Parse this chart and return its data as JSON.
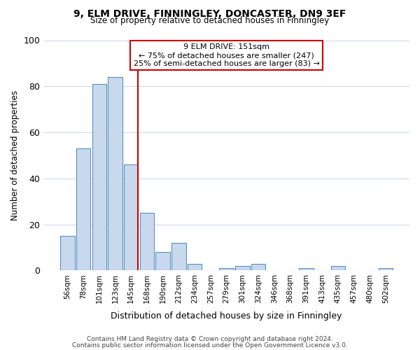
{
  "title": "9, ELM DRIVE, FINNINGLEY, DONCASTER, DN9 3EF",
  "subtitle": "Size of property relative to detached houses in Finningley",
  "xlabel": "Distribution of detached houses by size in Finningley",
  "ylabel": "Number of detached properties",
  "bar_labels": [
    "56sqm",
    "78sqm",
    "101sqm",
    "123sqm",
    "145sqm",
    "168sqm",
    "190sqm",
    "212sqm",
    "234sqm",
    "257sqm",
    "279sqm",
    "301sqm",
    "324sqm",
    "346sqm",
    "368sqm",
    "391sqm",
    "413sqm",
    "435sqm",
    "457sqm",
    "480sqm",
    "502sqm"
  ],
  "bar_values": [
    15,
    53,
    81,
    84,
    46,
    25,
    8,
    12,
    3,
    0,
    1,
    2,
    3,
    0,
    0,
    1,
    0,
    2,
    0,
    0,
    1
  ],
  "bar_color": "#c9d9ed",
  "bar_edge_color": "#5a8fc0",
  "background_color": "#ffffff",
  "grid_color": "#d0d8e8",
  "annotation_line1": "9 ELM DRIVE: 151sqm",
  "annotation_line2": "← 75% of detached houses are smaller (247)",
  "annotation_line3": "25% of semi-detached houses are larger (83) →",
  "annotation_box_edge_color": "#cc0000",
  "vline_color": "#cc0000",
  "ylim": [
    0,
    100
  ],
  "yticks": [
    0,
    20,
    40,
    60,
    80,
    100
  ],
  "footer_line1": "Contains HM Land Registry data © Crown copyright and database right 2024.",
  "footer_line2": "Contains public sector information licensed under the Open Government Licence v3.0."
}
